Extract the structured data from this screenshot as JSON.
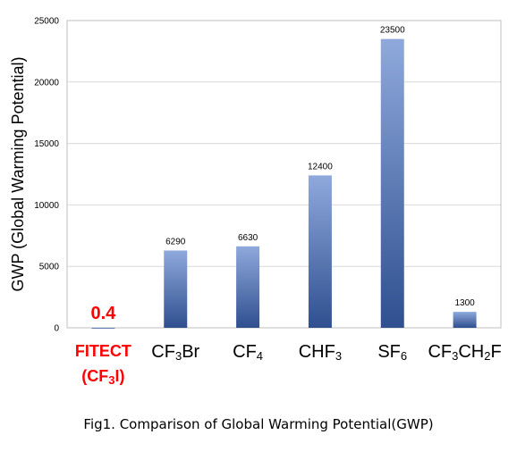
{
  "chart_data": {
    "type": "bar",
    "categories": [
      {
        "parts": [
          {
            "t": "CF"
          },
          {
            "t": "3",
            "sub": true
          },
          {
            "t": "Br"
          }
        ]
      },
      {
        "parts": [
          {
            "t": "CF"
          },
          {
            "t": "4",
            "sub": true
          }
        ]
      },
      {
        "parts": [
          {
            "t": "CHF"
          },
          {
            "t": "3",
            "sub": true
          }
        ]
      },
      {
        "parts": [
          {
            "t": "SF"
          },
          {
            "t": "6",
            "sub": true
          }
        ]
      },
      {
        "parts": [
          {
            "t": "CF"
          },
          {
            "t": "3",
            "sub": true
          },
          {
            "t": "CH"
          },
          {
            "t": "2",
            "sub": true
          },
          {
            "t": "F"
          }
        ]
      }
    ],
    "highlight_category": {
      "line1": "FITECT",
      "line2": {
        "parts": [
          {
            "t": "(CF"
          },
          {
            "t": "3",
            "sub": true
          },
          {
            "t": "I)"
          }
        ]
      },
      "value": 0.4,
      "value_label": "0.4"
    },
    "values": [
      6290,
      6630,
      12400,
      23500,
      1300
    ],
    "value_labels": [
      "6290",
      "6630",
      "12400",
      "23500",
      "1300"
    ],
    "ylabel": "GWP (Global Warming Potential)",
    "ylim": [
      0,
      25000
    ],
    "yticks": [
      "0",
      "5000",
      "10000",
      "15000",
      "20000",
      "25000"
    ],
    "grid": true,
    "colors": {
      "bar_top": "#8fa9dc",
      "bar_bottom": "#2f4f8f",
      "highlight": "#ff0000",
      "grid": "#d9d9d9",
      "axis": "#bfbfbf"
    }
  },
  "caption": "Fig1. Comparison of Global Warming Potential(GWP)"
}
